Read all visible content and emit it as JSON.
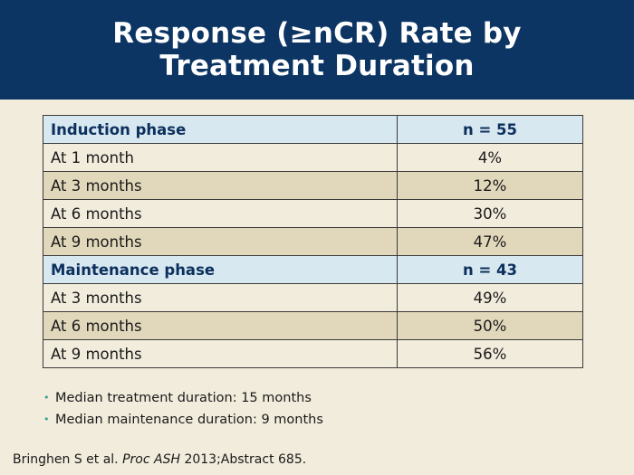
{
  "slide": {
    "title_line1": "Response (≥nCR) Rate by",
    "title_line2": "Treatment Duration"
  },
  "table": {
    "induction": {
      "label": "Induction phase",
      "n": "n = 55",
      "rows": [
        {
          "label": "At 1 month",
          "value": "4%"
        },
        {
          "label": "At 3 months",
          "value": "12%"
        },
        {
          "label": "At 6 months",
          "value": "30%"
        },
        {
          "label": "At 9 months",
          "value": "47%"
        }
      ]
    },
    "maintenance": {
      "label": "Maintenance phase",
      "n": "n = 43",
      "rows": [
        {
          "label": "At 3 months",
          "value": "49%"
        },
        {
          "label": "At 6 months",
          "value": "50%"
        },
        {
          "label": "At 9 months",
          "value": "56%"
        }
      ]
    }
  },
  "bullets": [
    "Median treatment duration: 15 months",
    "Median maintenance duration: 9 months"
  ],
  "citation": {
    "authors": "Bringhen S et al.",
    "journal": "Proc ASH",
    "details": "2013;Abstract 685."
  },
  "colors": {
    "header_bg": "#0c3563",
    "page_bg": "#f2ecdc",
    "section_row_bg": "#d7e8f1",
    "shaded_row_bg": "#e1d7ba",
    "bullet_color": "#3a9a8c"
  }
}
